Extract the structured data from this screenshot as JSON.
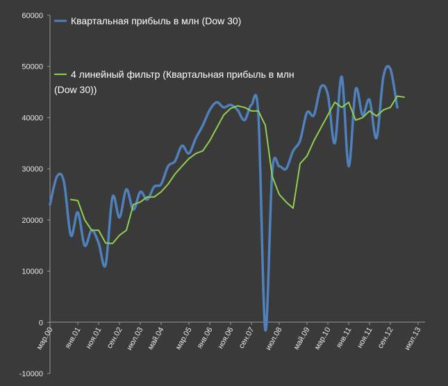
{
  "chart_data": {
    "type": "line",
    "title": "",
    "xlabel": "",
    "ylabel": "",
    "ylim": [
      -10000,
      60000
    ],
    "yticks": [
      "-10000",
      "0",
      "10000",
      "20000",
      "30000",
      "40000",
      "50000",
      "60000"
    ],
    "ytick_values": [
      -10000,
      0,
      10000,
      20000,
      30000,
      40000,
      50000,
      60000
    ],
    "grid": false,
    "legend_position": "top-left",
    "x_tick_labels": [
      "мар.00",
      "янв.01",
      "ноя.01",
      "сен.02",
      "июл.03",
      "май.04",
      "мар.05",
      "янв.06",
      "ноя.06",
      "сен.07",
      "июл.08",
      "май.09",
      "мар.10",
      "янв.11",
      "ноя.11",
      "сен.12",
      "июл.13"
    ],
    "x_tick_quarter_index": [
      0,
      4,
      7,
      10,
      13,
      16,
      20,
      23,
      26,
      29,
      33,
      37,
      40,
      43,
      46,
      49,
      53
    ],
    "series": [
      {
        "name": "Квартальная прибыль в млн (Dow 30)",
        "color": "#4f81bd",
        "quarter_index": [
          0,
          1,
          2,
          3,
          4,
          5,
          6,
          7,
          8,
          9,
          10,
          11,
          12,
          13,
          14,
          15,
          16,
          17,
          18,
          19,
          20,
          21,
          22,
          23,
          24,
          25,
          26,
          27,
          28,
          29,
          30,
          31,
          32,
          33,
          34,
          35,
          36,
          37,
          38,
          39,
          40,
          41,
          42,
          43,
          44,
          45,
          46,
          47,
          48,
          49,
          50,
          51,
          52,
          53,
          54
        ],
        "values": [
          23000,
          28500,
          27500,
          17000,
          21500,
          15000,
          18000,
          15500,
          11200,
          24500,
          20500,
          26000,
          22000,
          25500,
          24000,
          26500,
          27000,
          30500,
          31500,
          34500,
          33000,
          36000,
          38500,
          41500,
          43000,
          42000,
          42500,
          41500,
          39500,
          42500,
          40500,
          -1500,
          29500,
          30500,
          30000,
          33500,
          35500,
          41000,
          40500,
          46000,
          44500,
          35000,
          48000,
          30500,
          45500,
          40500,
          43500,
          36000,
          48000,
          49500,
          42000,
          null,
          null,
          null,
          null
        ]
      },
      {
        "name": "4 линейный фильтр (Квартальная  прибыль в млн (Dow 30))",
        "color": "#92d050",
        "quarter_index": [
          0,
          1,
          2,
          3,
          4,
          5,
          6,
          7,
          8,
          9,
          10,
          11,
          12,
          13,
          14,
          15,
          16,
          17,
          18,
          19,
          20,
          21,
          22,
          23,
          24,
          25,
          26,
          27,
          28,
          29,
          30,
          31,
          32,
          33,
          34,
          35,
          36,
          37,
          38,
          39,
          40,
          41,
          42,
          43,
          44,
          45,
          46,
          47,
          48,
          49,
          50,
          51,
          52,
          53,
          54
        ],
        "values": [
          null,
          null,
          null,
          24000,
          23800,
          20000,
          18000,
          18000,
          15500,
          15400,
          17000,
          18000,
          23000,
          23500,
          24500,
          24500,
          25500,
          27000,
          29000,
          30500,
          32000,
          33000,
          33500,
          35500,
          38000,
          40500,
          41800,
          42300,
          42000,
          41300,
          41300,
          38500,
          28500,
          25000,
          23500,
          22300,
          31000,
          32500,
          35500,
          38000,
          40500,
          43000,
          42000,
          43000,
          39500,
          40000,
          41300,
          40300,
          41500,
          42000,
          44200,
          44000,
          null,
          null,
          null
        ]
      }
    ]
  }
}
